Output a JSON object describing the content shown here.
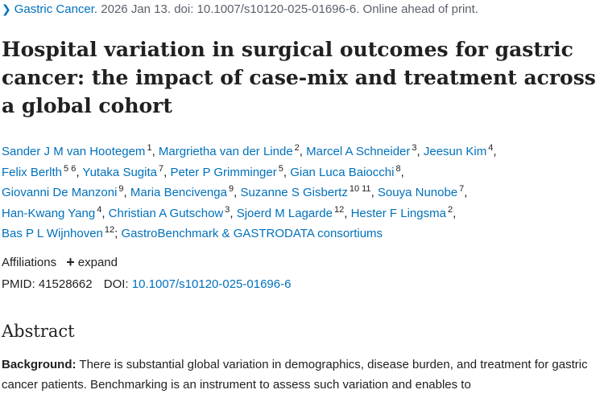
{
  "journal": {
    "name": "Gastric Cancer.",
    "details": "2026 Jan 13. doi: 10.1007/s10120-025-01696-6. Online ahead of print."
  },
  "title": "Hospital variation in surgical outcomes for gastric cancer: the impact of case-mix and treatment across a global cohort",
  "authors": [
    {
      "name": "Sander J M van Hootegem",
      "sup": "1"
    },
    {
      "name": "Margrietha van der Linde",
      "sup": "2"
    },
    {
      "name": "Marcel A Schneider",
      "sup": "3"
    },
    {
      "name": "Jeesun Kim",
      "sup": "4"
    },
    {
      "name": "Felix Berlth",
      "sup": "5 6"
    },
    {
      "name": "Yutaka Sugita",
      "sup": "7"
    },
    {
      "name": "Peter P Grimminger",
      "sup": "5"
    },
    {
      "name": "Gian Luca Baiocchi",
      "sup": "8"
    },
    {
      "name": "Giovanni De Manzoni",
      "sup": "9"
    },
    {
      "name": "Maria Bencivenga",
      "sup": "9"
    },
    {
      "name": "Suzanne S Gisbertz",
      "sup": "10 11"
    },
    {
      "name": "Souya Nunobe",
      "sup": "7"
    },
    {
      "name": "Han-Kwang Yang",
      "sup": "4"
    },
    {
      "name": "Christian A Gutschow",
      "sup": "3"
    },
    {
      "name": "Sjoerd M Lagarde",
      "sup": "12"
    },
    {
      "name": "Hester F Lingsma",
      "sup": "2"
    },
    {
      "name": "Bas P L Wijnhoven",
      "sup": "12"
    }
  ],
  "consortium": "GastroBenchmark & GASTRODATA consortiums",
  "affiliations": {
    "label": "Affiliations",
    "expand_label": "expand"
  },
  "ids": {
    "pmid_label": "PMID:",
    "pmid": "41528662",
    "doi_label": "DOI:",
    "doi": "10.1007/s10120-025-01696-6"
  },
  "abstract": {
    "heading": "Abstract",
    "background_label": "Background:",
    "background_text": "There is substantial global variation in demographics, disease burden, and treatment for gastric cancer patients. Benchmarking is an instrument to assess such variation and enables to"
  }
}
